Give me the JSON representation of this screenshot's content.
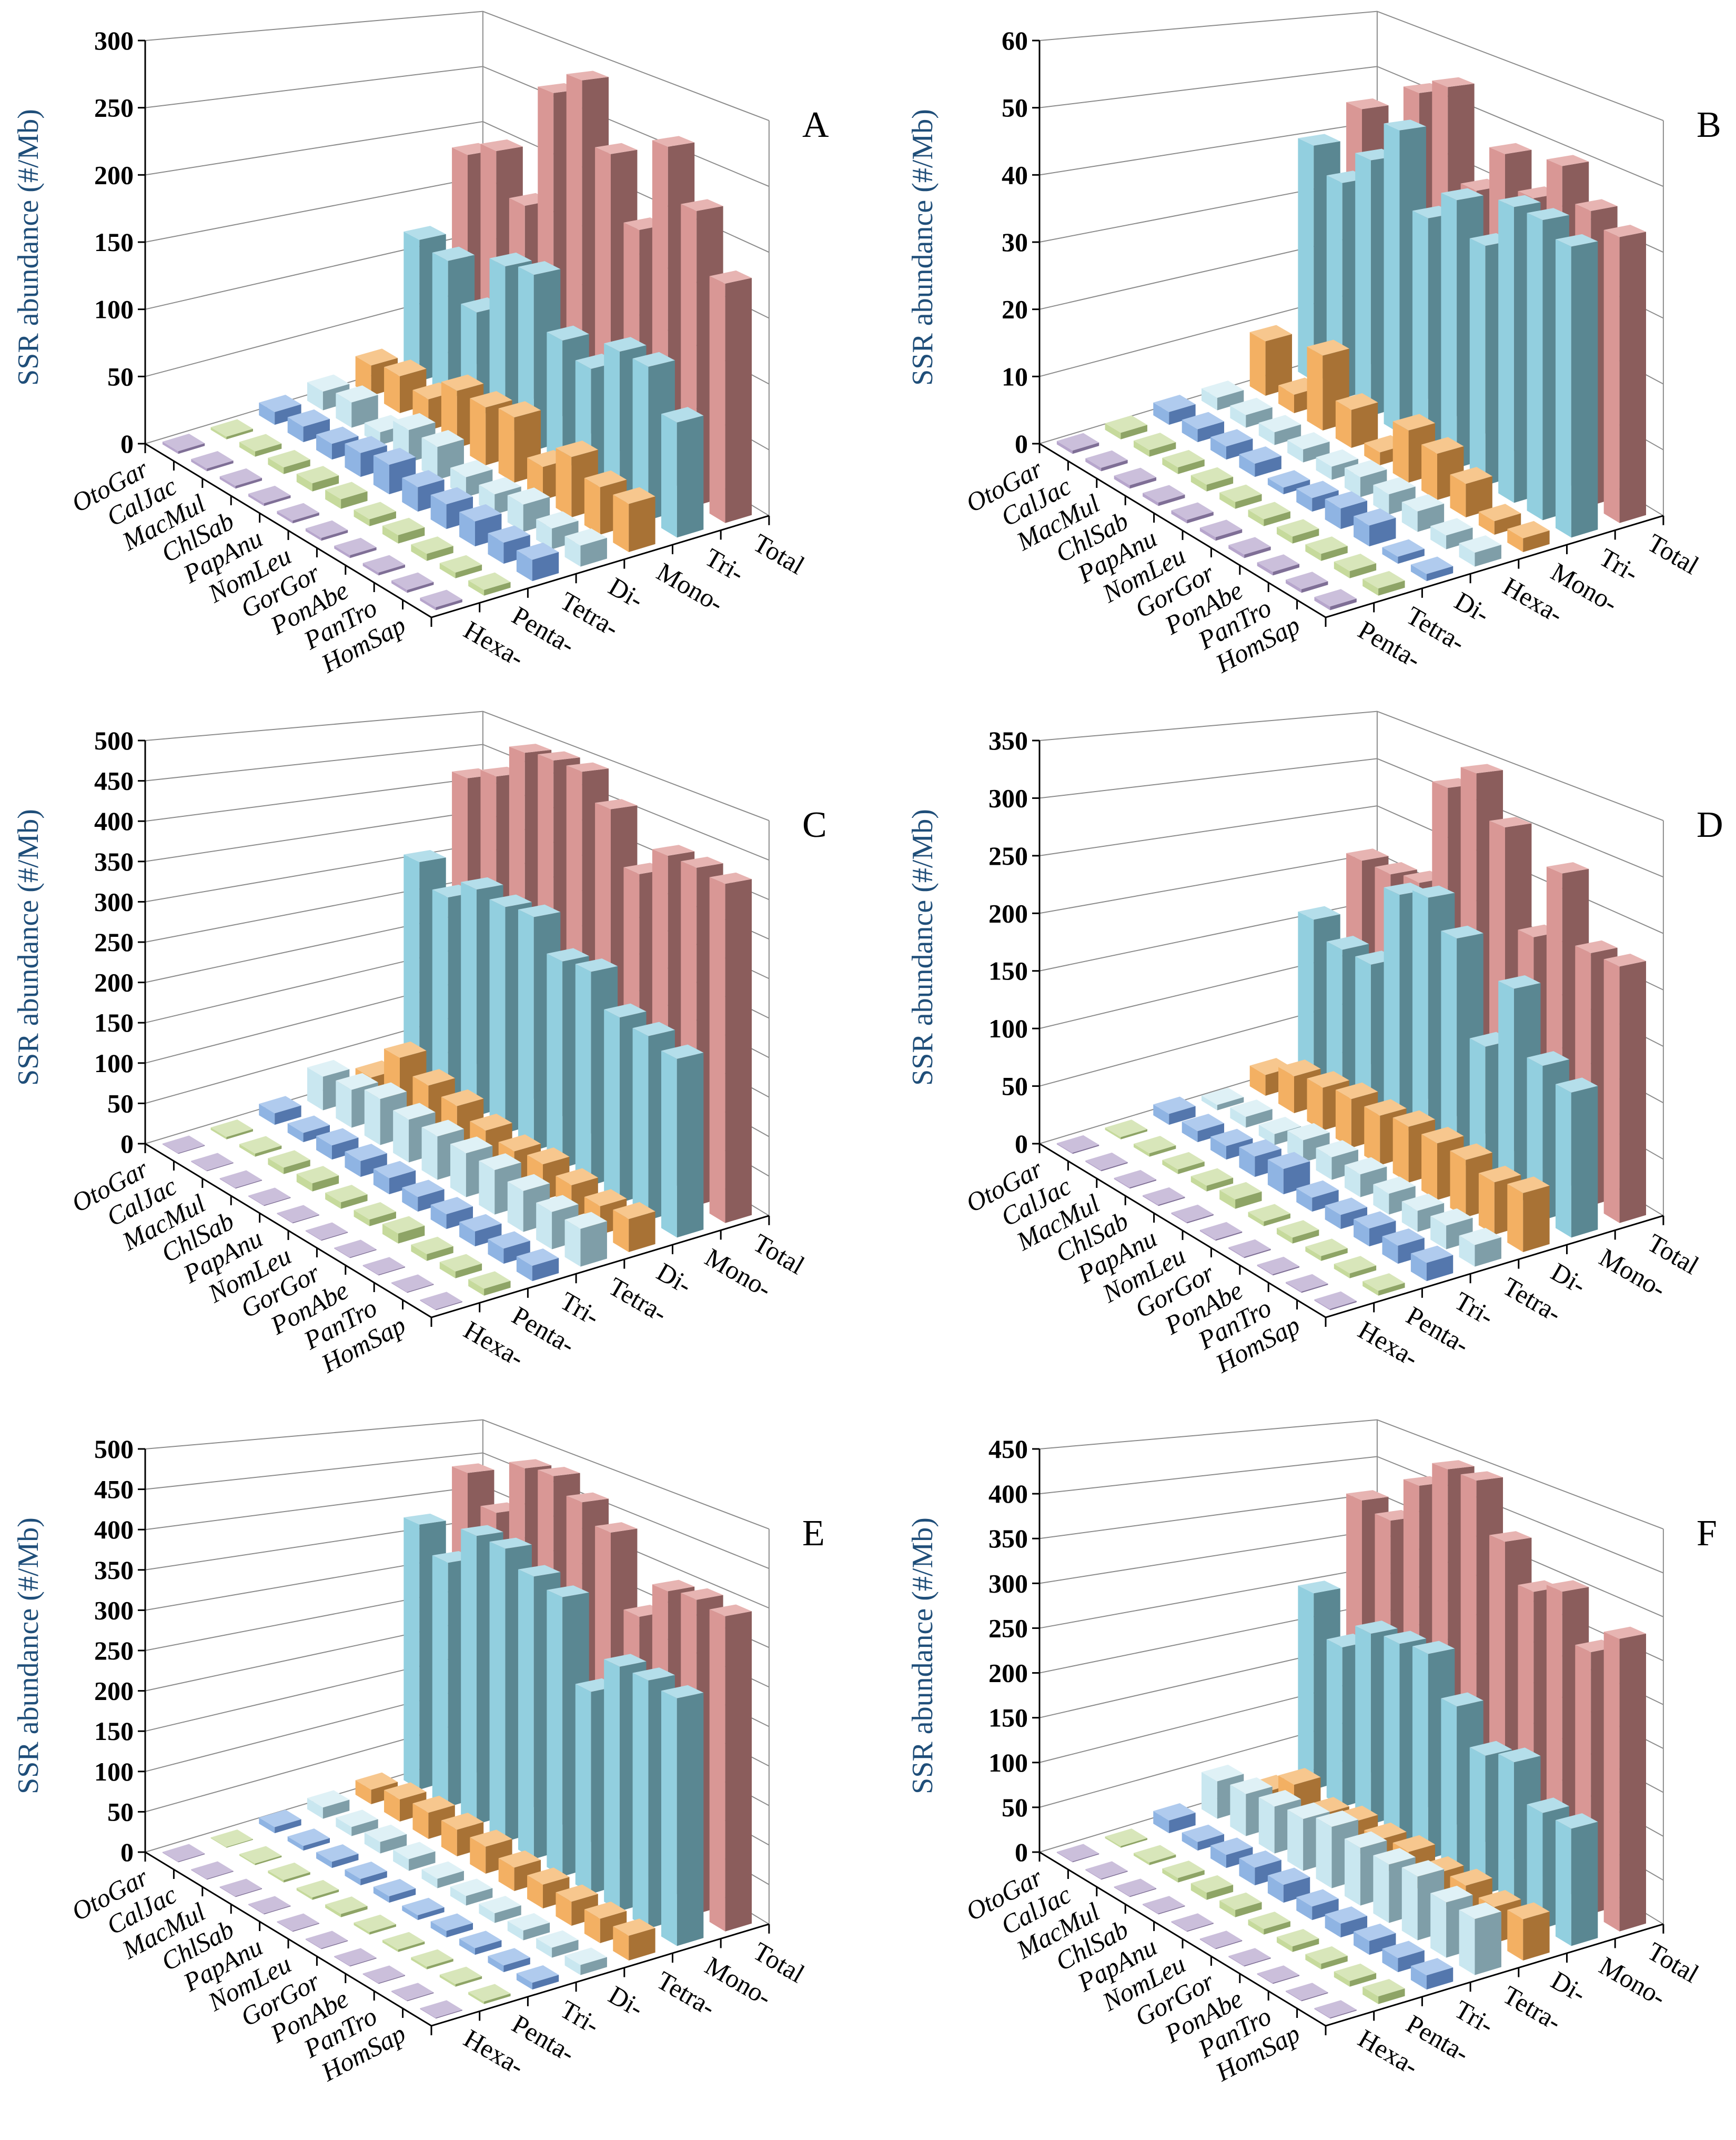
{
  "series_colors": [
    {
      "light": "#b7a6cc",
      "dark": "#7f6f96",
      "top": "#cbbfdb"
    },
    {
      "light": "#c6da9c",
      "dark": "#8ea466",
      "top": "#d8e6ba"
    },
    {
      "light": "#8fb4e3",
      "dark": "#5477ad",
      "top": "#b0cbee"
    },
    {
      "light": "#c9e7f0",
      "dark": "#7f9ea8",
      "top": "#dff1f6"
    },
    {
      "light": "#f3b063",
      "dark": "#a87235",
      "top": "#f7c78e"
    },
    {
      "light": "#92cfdf",
      "dark": "#5a8792",
      "top": "#b4deea"
    },
    {
      "light": "#d99795",
      "dark": "#8b5d5c",
      "top": "#e7b4b2"
    }
  ],
  "chart_data": [
    {
      "panel": "A",
      "type": "bar3d",
      "ylabel": "SSR abundance (#/Mb)",
      "ylim": [
        0,
        300
      ],
      "ytick_step": 50,
      "grid": true,
      "categories": [
        "OtoGar",
        "CalJac",
        "MacMul",
        "ChlSab",
        "PapAnu",
        "NomLeu",
        "GorGor",
        "PonAbe",
        "PanTro",
        "HomSap"
      ],
      "series": [
        {
          "name": "Hexa-",
          "values": [
            2,
            2,
            2,
            2,
            2,
            2,
            2,
            2,
            2,
            2
          ]
        },
        {
          "name": "Penta-",
          "values": [
            2,
            4,
            5,
            6,
            7,
            5,
            6,
            5,
            4,
            4
          ]
        },
        {
          "name": "Tetra-",
          "values": [
            10,
            12,
            12,
            18,
            22,
            18,
            18,
            18,
            15,
            15
          ]
        },
        {
          "name": "Di-",
          "values": [
            15,
            20,
            10,
            25,
            25,
            15,
            15,
            20,
            15,
            15
          ]
        },
        {
          "name": "Mono-",
          "values": [
            25,
            30,
            25,
            45,
            45,
            50,
            25,
            45,
            35,
            35
          ]
        },
        {
          "name": "Tri-",
          "values": [
            120,
            115,
            85,
            135,
            140,
            100,
            90,
            115,
            115,
            85
          ]
        },
        {
          "name": "Total",
          "values": [
            185,
            200,
            165,
            270,
            290,
            240,
            190,
            265,
            225,
            180
          ]
        }
      ]
    },
    {
      "panel": "B",
      "type": "bar3d",
      "ylabel": "SSR abundance (#/Mb)",
      "ylim": [
        0,
        60
      ],
      "ytick_step": 10,
      "grid": true,
      "categories": [
        "OtoGar",
        "CalJac",
        "MacMul",
        "ChlSab",
        "PapAnu",
        "NomLeu",
        "GorGor",
        "PonAbe",
        "PanTro",
        "HomSap"
      ],
      "series": [
        {
          "name": "Penta-",
          "values": [
            0.5,
            0.5,
            0.5,
            0.5,
            0.5,
            0.5,
            0.5,
            0.5,
            0.5,
            0.5
          ]
        },
        {
          "name": "Tetra-",
          "values": [
            1,
            1,
            1,
            1,
            1,
            1,
            1,
            1,
            1,
            1
          ]
        },
        {
          "name": "Di-",
          "values": [
            2,
            2,
            2,
            2,
            1,
            2,
            3,
            3,
            1,
            1
          ]
        },
        {
          "name": "Hexa-",
          "values": [
            2,
            2,
            2,
            2,
            2,
            3,
            3,
            3,
            2,
            2
          ]
        },
        {
          "name": "Mono-",
          "values": [
            9,
            3,
            12,
            6,
            2,
            8,
            7,
            5,
            2,
            2
          ]
        },
        {
          "name": "Tri-",
          "values": [
            40,
            36,
            42,
            49,
            37,
            42,
            37,
            45,
            45,
            43
          ]
        },
        {
          "name": "Total",
          "values": [
            45,
            38,
            52,
            55,
            40,
            48,
            43,
            50,
            45,
            43
          ]
        }
      ]
    },
    {
      "panel": "C",
      "type": "bar3d",
      "ylabel": "SSR abundance (#/Mb)",
      "ylim": [
        0,
        500
      ],
      "ytick_step": 50,
      "grid": true,
      "categories": [
        "OtoGar",
        "CalJac",
        "MacMul",
        "ChlSab",
        "PapAnu",
        "NomLeu",
        "GorGor",
        "PonAbe",
        "PanTro",
        "HomSap"
      ],
      "series": [
        {
          "name": "Hexa-",
          "values": [
            1,
            1,
            1,
            1,
            1,
            1,
            1,
            1,
            1,
            1
          ]
        },
        {
          "name": "Penta-",
          "values": [
            3,
            4,
            8,
            10,
            8,
            8,
            12,
            8,
            8,
            8
          ]
        },
        {
          "name": "Tri-",
          "values": [
            15,
            12,
            18,
            20,
            20,
            18,
            18,
            18,
            18,
            18
          ]
        },
        {
          "name": "Tetra-",
          "values": [
            45,
            50,
            60,
            55,
            55,
            55,
            55,
            50,
            45,
            45
          ]
        },
        {
          "name": "Di-",
          "values": [
            25,
            75,
            60,
            55,
            45,
            40,
            45,
            40,
            35,
            40
          ]
        },
        {
          "name": "Mono-",
          "values": [
            310,
            280,
            310,
            305,
            310,
            270,
            275,
            235,
            230,
            220
          ]
        },
        {
          "name": "Total",
          "values": [
            420,
            440,
            490,
            495,
            495,
            460,
            390,
            430,
            430,
            425
          ]
        }
      ]
    },
    {
      "panel": "D",
      "type": "bar3d",
      "ylabel": "SSR abundance (#/Mb)",
      "ylim": [
        0,
        350
      ],
      "ytick_step": 50,
      "grid": true,
      "categories": [
        "OtoGar",
        "CalJac",
        "MacMul",
        "ChlSab",
        "PapAnu",
        "NomLeu",
        "GorGor",
        "PonAbe",
        "PanTro",
        "HomSap"
      ],
      "series": [
        {
          "name": "Hexa-",
          "values": [
            1,
            1,
            1,
            1,
            1,
            1,
            1,
            1,
            1,
            1
          ]
        },
        {
          "name": "Penta-",
          "values": [
            2,
            3,
            4,
            5,
            8,
            4,
            5,
            4,
            4,
            4
          ]
        },
        {
          "name": "Tri-",
          "values": [
            10,
            10,
            12,
            18,
            22,
            12,
            12,
            15,
            15,
            15
          ]
        },
        {
          "name": "Tetra-",
          "values": [
            5,
            10,
            10,
            20,
            20,
            20,
            18,
            18,
            20,
            18
          ]
        },
        {
          "name": "Di-",
          "values": [
            20,
            35,
            40,
            45,
            45,
            50,
            50,
            50,
            45,
            50
          ]
        },
        {
          "name": "Mono-",
          "values": [
            160,
            145,
            145,
            225,
            235,
            210,
            125,
            190,
            135,
            125
          ]
        },
        {
          "name": "Total",
          "values": [
            210,
            210,
            215,
            320,
            345,
            305,
            215,
            285,
            225,
            225
          ]
        }
      ]
    },
    {
      "panel": "E",
      "type": "bar3d",
      "ylabel": "SSR abundance (#/Mb)",
      "ylim": [
        0,
        500
      ],
      "ytick_step": 50,
      "grid": true,
      "categories": [
        "OtoGar",
        "CalJac",
        "MacMul",
        "ChlSab",
        "PapAnu",
        "NomLeu",
        "GorGor",
        "PonAbe",
        "PanTro",
        "HomSap"
      ],
      "series": [
        {
          "name": "Hexa-",
          "values": [
            1,
            1,
            1,
            1,
            1,
            1,
            1,
            1,
            1,
            1
          ]
        },
        {
          "name": "Penta-",
          "values": [
            1,
            2,
            3,
            3,
            4,
            3,
            3,
            3,
            3,
            3
          ]
        },
        {
          "name": "Tri-",
          "values": [
            8,
            6,
            8,
            8,
            8,
            6,
            8,
            8,
            8,
            8
          ]
        },
        {
          "name": "Di-",
          "values": [
            15,
            12,
            15,
            15,
            12,
            12,
            12,
            12,
            12,
            12
          ]
        },
        {
          "name": "Tetra-",
          "values": [
            20,
            30,
            35,
            35,
            35,
            30,
            30,
            30,
            30,
            30
          ]
        },
        {
          "name": "Mono-",
          "values": [
            375,
            340,
            395,
            395,
            375,
            365,
            260,
            310,
            310,
            305
          ]
        },
        {
          "name": "Total",
          "values": [
            440,
            400,
            480,
            485,
            465,
            440,
            345,
            395,
            400,
            395
          ]
        }
      ]
    },
    {
      "panel": "F",
      "type": "bar3d",
      "ylabel": "SSR abundance (#/Mb)",
      "ylim": [
        0,
        450
      ],
      "ytick_step": 50,
      "grid": true,
      "categories": [
        "OtoGar",
        "CalJac",
        "MacMul",
        "ChlSab",
        "PapAnu",
        "NomLeu",
        "GorGor",
        "PonAbe",
        "PanTro",
        "HomSap"
      ],
      "series": [
        {
          "name": "Hexa-",
          "values": [
            1,
            1,
            1,
            1,
            1,
            1,
            1,
            1,
            1,
            1
          ]
        },
        {
          "name": "Penta-",
          "values": [
            2,
            3,
            5,
            8,
            8,
            6,
            6,
            6,
            6,
            8
          ]
        },
        {
          "name": "Tri-",
          "values": [
            15,
            10,
            15,
            20,
            20,
            15,
            15,
            15,
            15,
            15
          ]
        },
        {
          "name": "Tetra-",
          "values": [
            45,
            50,
            55,
            60,
            70,
            65,
            65,
            70,
            60,
            60
          ]
        },
        {
          "name": "Di-",
          "values": [
            15,
            45,
            30,
            40,
            40,
            45,
            40,
            45,
            40,
            45
          ]
        },
        {
          "name": "Mono-",
          "values": [
            250,
            200,
            235,
            240,
            245,
            200,
            160,
            170,
            130,
            130
          ]
        },
        {
          "name": "Total",
          "values": [
            360,
            350,
            410,
            445,
            445,
            385,
            340,
            355,
            300,
            330
          ]
        }
      ]
    }
  ]
}
